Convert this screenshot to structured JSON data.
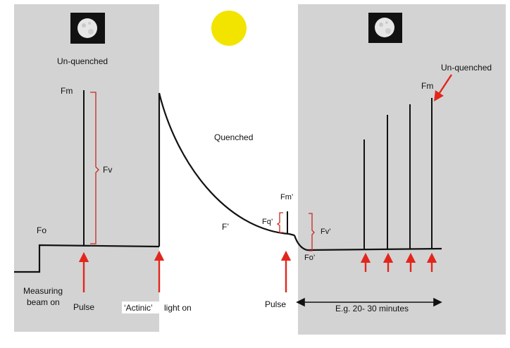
{
  "colors": {
    "panel": "#d3d3d3",
    "trace": "#111111",
    "red": "#e2261c",
    "bracket": "#c42a1f",
    "sun": "#f3e400",
    "moon_bg": "#111111",
    "moon": "#e6e6e6"
  },
  "icons": {
    "moon_left": "moon-icon",
    "moon_right": "moon-icon",
    "sun": "sun-icon"
  },
  "labels": {
    "unquenched_left": "Un-quenched",
    "fm_left": "Fm",
    "fv": "Fv",
    "fo": "Fo",
    "measuring_line1": "Measuring",
    "measuring_line2": "beam on",
    "pulse_left": "Pulse",
    "actinic_quoted": "‘Actinic’",
    "actinic_rest": "light on",
    "quenched": "Quenched",
    "f_prime": "F’",
    "fm_prime": "Fm’",
    "fq_prime": "Fq’",
    "fv_prime": "Fv’",
    "fo_prime": "Fo’",
    "pulse_mid": "Pulse",
    "time_span": "E.g. 20- 30  minutes",
    "unquenched_right": "Un-quenched",
    "fm_right": "Fm"
  }
}
